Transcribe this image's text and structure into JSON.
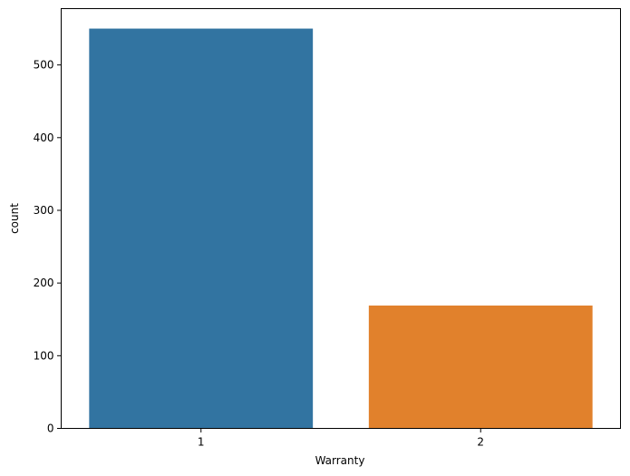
{
  "chart_data": {
    "type": "bar",
    "title": "",
    "xlabel": "Warranty",
    "ylabel": "count",
    "categories": [
      "1",
      "2"
    ],
    "values": [
      550,
      169
    ],
    "colors": [
      "#3274a1",
      "#e1812c"
    ],
    "ylim": [
      0,
      577.5
    ],
    "yticks": [
      0,
      100,
      200,
      300,
      400,
      500
    ],
    "ytick_labels": [
      "0",
      "100",
      "200",
      "300",
      "400",
      "500"
    ],
    "grid": false,
    "legend": "none"
  }
}
